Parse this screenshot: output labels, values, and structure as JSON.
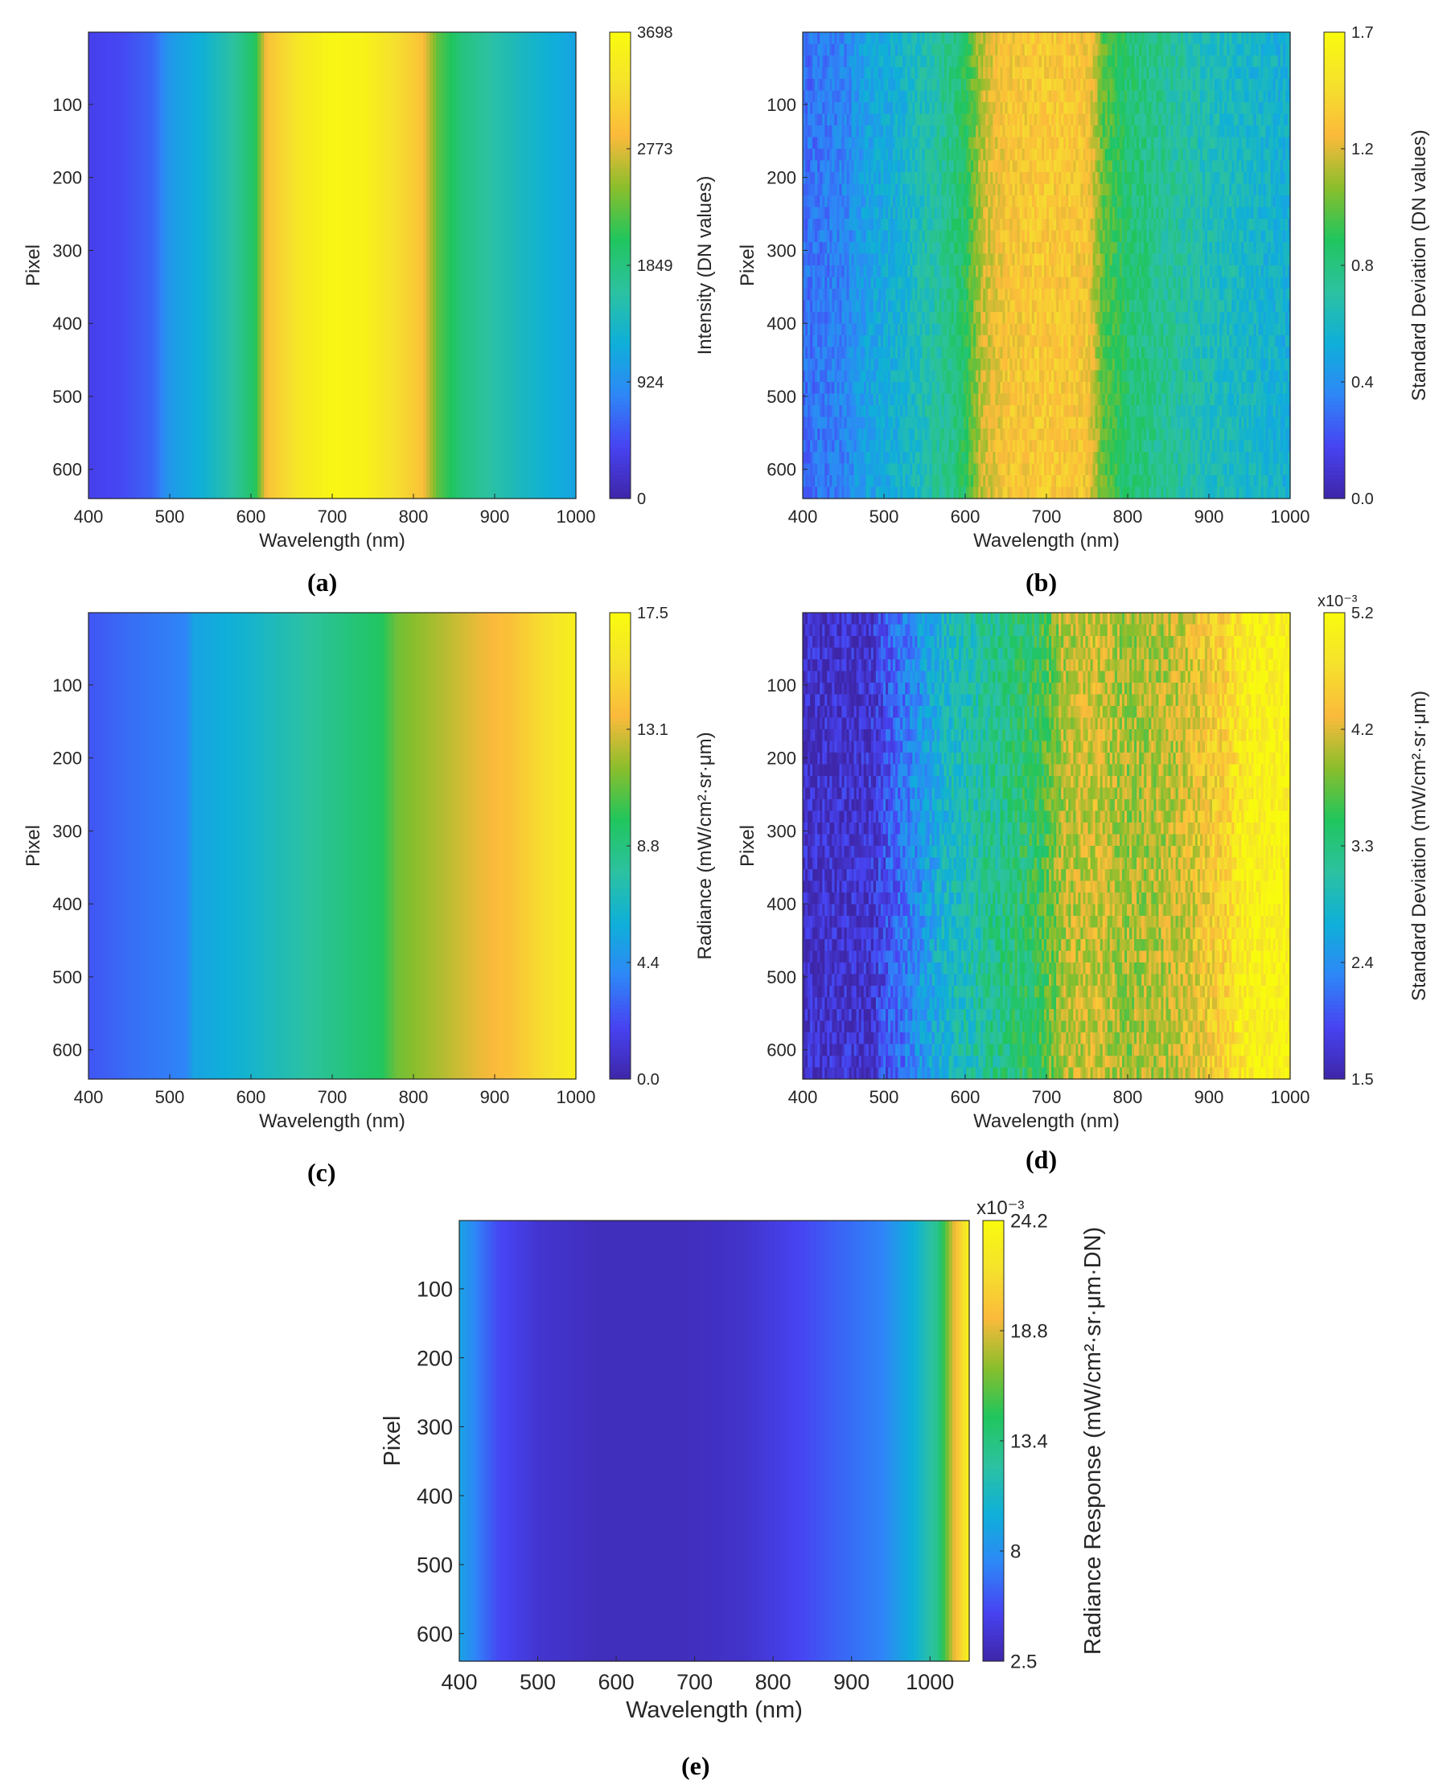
{
  "colormap": [
    "#3e26a8",
    "#4743f2",
    "#2e87f7",
    "#0fafd9",
    "#2cc2a0",
    "#20c55d",
    "#8bbe2c",
    "#fbba3b",
    "#f5e12d",
    "#f9fb0e"
  ],
  "chart_data": [
    {
      "id": "a",
      "type": "heatmap",
      "panel_label": "(a)",
      "xlabel": "Wavelength (nm)",
      "ylabel": "Pixel",
      "xlim": [
        400,
        1000
      ],
      "ylim": [
        640,
        1
      ],
      "xticks": [
        400,
        500,
        600,
        700,
        800,
        900,
        1000
      ],
      "yticks": [
        100,
        200,
        300,
        400,
        500,
        600
      ],
      "colorbar": {
        "label": "Intensity (DN values)",
        "min": 0,
        "max": 3698,
        "ticks": [
          "0",
          "924",
          "1849",
          "2773",
          "3698"
        ],
        "exponent": ""
      },
      "profile": [
        {
          "wavelength": 400,
          "value": 0.1
        },
        {
          "wavelength": 440,
          "value": 0.12
        },
        {
          "wavelength": 480,
          "value": 0.17
        },
        {
          "wavelength": 500,
          "value": 0.27
        },
        {
          "wavelength": 540,
          "value": 0.34
        },
        {
          "wavelength": 580,
          "value": 0.45
        },
        {
          "wavelength": 605,
          "value": 0.55
        },
        {
          "wavelength": 620,
          "value": 0.8
        },
        {
          "wavelength": 660,
          "value": 0.92
        },
        {
          "wavelength": 700,
          "value": 0.98
        },
        {
          "wavelength": 740,
          "value": 0.96
        },
        {
          "wavelength": 780,
          "value": 0.88
        },
        {
          "wavelength": 810,
          "value": 0.8
        },
        {
          "wavelength": 830,
          "value": 0.62
        },
        {
          "wavelength": 860,
          "value": 0.5
        },
        {
          "wavelength": 900,
          "value": 0.43
        },
        {
          "wavelength": 950,
          "value": 0.36
        },
        {
          "wavelength": 1000,
          "value": 0.3
        }
      ],
      "noise": 0
    },
    {
      "id": "b",
      "type": "heatmap",
      "panel_label": "(b)",
      "xlabel": "Wavelength (nm)",
      "ylabel": "Pixel",
      "xlim": [
        400,
        1000
      ],
      "ylim": [
        640,
        1
      ],
      "xticks": [
        400,
        500,
        600,
        700,
        800,
        900,
        1000
      ],
      "yticks": [
        100,
        200,
        300,
        400,
        500,
        600
      ],
      "colorbar": {
        "label": "Standard Deviation (DN values)",
        "min": 0.0,
        "max": 1.7,
        "ticks": [
          "0.0",
          "0.4",
          "0.8",
          "1.2",
          "1.7"
        ],
        "exponent": ""
      },
      "profile": [
        {
          "wavelength": 400,
          "value": 0.18
        },
        {
          "wavelength": 450,
          "value": 0.22
        },
        {
          "wavelength": 480,
          "value": 0.3
        },
        {
          "wavelength": 520,
          "value": 0.35
        },
        {
          "wavelength": 570,
          "value": 0.45
        },
        {
          "wavelength": 600,
          "value": 0.55
        },
        {
          "wavelength": 620,
          "value": 0.72
        },
        {
          "wavelength": 650,
          "value": 0.8
        },
        {
          "wavelength": 700,
          "value": 0.82
        },
        {
          "wavelength": 750,
          "value": 0.8
        },
        {
          "wavelength": 770,
          "value": 0.62
        },
        {
          "wavelength": 800,
          "value": 0.52
        },
        {
          "wavelength": 850,
          "value": 0.46
        },
        {
          "wavelength": 900,
          "value": 0.4
        },
        {
          "wavelength": 1000,
          "value": 0.34
        }
      ],
      "noise": 0.06
    },
    {
      "id": "c",
      "type": "heatmap",
      "panel_label": "(c)",
      "xlabel": "Wavelength (nm)",
      "ylabel": "Pixel",
      "xlim": [
        400,
        1000
      ],
      "ylim": [
        640,
        1
      ],
      "xticks": [
        400,
        500,
        600,
        700,
        800,
        900,
        1000
      ],
      "yticks": [
        100,
        200,
        300,
        400,
        500,
        600
      ],
      "colorbar": {
        "label": "Radiance (mW/cm²·sr·μm)",
        "min": 0.0,
        "max": 17.5,
        "ticks": [
          "0.0",
          "4.4",
          "8.8",
          "13.1",
          "17.5"
        ],
        "exponent": ""
      },
      "profile": [
        {
          "wavelength": 400,
          "value": 0.14
        },
        {
          "wavelength": 450,
          "value": 0.18
        },
        {
          "wavelength": 520,
          "value": 0.22
        },
        {
          "wavelength": 530,
          "value": 0.3
        },
        {
          "wavelength": 600,
          "value": 0.36
        },
        {
          "wavelength": 650,
          "value": 0.42
        },
        {
          "wavelength": 700,
          "value": 0.48
        },
        {
          "wavelength": 760,
          "value": 0.55
        },
        {
          "wavelength": 780,
          "value": 0.64
        },
        {
          "wavelength": 830,
          "value": 0.7
        },
        {
          "wavelength": 880,
          "value": 0.76
        },
        {
          "wavelength": 920,
          "value": 0.8
        },
        {
          "wavelength": 960,
          "value": 0.88
        },
        {
          "wavelength": 1000,
          "value": 0.95
        }
      ],
      "noise": 0
    },
    {
      "id": "d",
      "type": "heatmap",
      "panel_label": "(d)",
      "xlabel": "Wavelength (nm)",
      "ylabel": "Pixel",
      "xlim": [
        400,
        1000
      ],
      "ylim": [
        640,
        1
      ],
      "xticks": [
        400,
        500,
        600,
        700,
        800,
        900,
        1000
      ],
      "yticks": [
        100,
        200,
        300,
        400,
        500,
        600
      ],
      "colorbar": {
        "label": "Standard Deviation (mW/cm²·sr·μm)",
        "min": 1.5,
        "max": 5.2,
        "ticks": [
          "1.5",
          "2.4",
          "3.3",
          "4.2",
          "5.2"
        ],
        "exponent": "x10⁻³"
      },
      "profile": [
        {
          "wavelength": 400,
          "value": 0.04
        },
        {
          "wavelength": 480,
          "value": 0.05
        },
        {
          "wavelength": 500,
          "value": 0.12
        },
        {
          "wavelength": 540,
          "value": 0.25
        },
        {
          "wavelength": 580,
          "value": 0.38
        },
        {
          "wavelength": 640,
          "value": 0.48
        },
        {
          "wavelength": 690,
          "value": 0.56
        },
        {
          "wavelength": 720,
          "value": 0.7
        },
        {
          "wavelength": 760,
          "value": 0.74
        },
        {
          "wavelength": 800,
          "value": 0.68
        },
        {
          "wavelength": 860,
          "value": 0.72
        },
        {
          "wavelength": 920,
          "value": 0.85
        },
        {
          "wavelength": 950,
          "value": 0.96
        },
        {
          "wavelength": 1000,
          "value": 0.98
        }
      ],
      "noise": 0.09
    },
    {
      "id": "e",
      "type": "heatmap",
      "panel_label": "(e)",
      "xlabel": "Wavelength (nm)",
      "ylabel": "Pixel",
      "xlim": [
        400,
        1050
      ],
      "ylim": [
        640,
        1
      ],
      "xticks": [
        400,
        500,
        600,
        700,
        800,
        900,
        1000
      ],
      "yticks": [
        100,
        200,
        300,
        400,
        500,
        600
      ],
      "colorbar": {
        "label": "Radiance Response (mW/cm²·sr·μm·DN)",
        "min": 2.5,
        "max": 24.2,
        "ticks": [
          "2.5",
          "8",
          "13.4",
          "18.8",
          "24.2"
        ],
        "exponent": "x10⁻³"
      },
      "profile": [
        {
          "wavelength": 400,
          "value": 0.3
        },
        {
          "wavelength": 420,
          "value": 0.22
        },
        {
          "wavelength": 450,
          "value": 0.12
        },
        {
          "wavelength": 500,
          "value": 0.06
        },
        {
          "wavelength": 580,
          "value": 0.03
        },
        {
          "wavelength": 680,
          "value": 0.03
        },
        {
          "wavelength": 760,
          "value": 0.05
        },
        {
          "wavelength": 820,
          "value": 0.1
        },
        {
          "wavelength": 880,
          "value": 0.16
        },
        {
          "wavelength": 940,
          "value": 0.22
        },
        {
          "wavelength": 980,
          "value": 0.34
        },
        {
          "wavelength": 1010,
          "value": 0.48
        },
        {
          "wavelength": 1030,
          "value": 0.75
        },
        {
          "wavelength": 1050,
          "value": 0.97
        }
      ],
      "noise": 0
    }
  ]
}
